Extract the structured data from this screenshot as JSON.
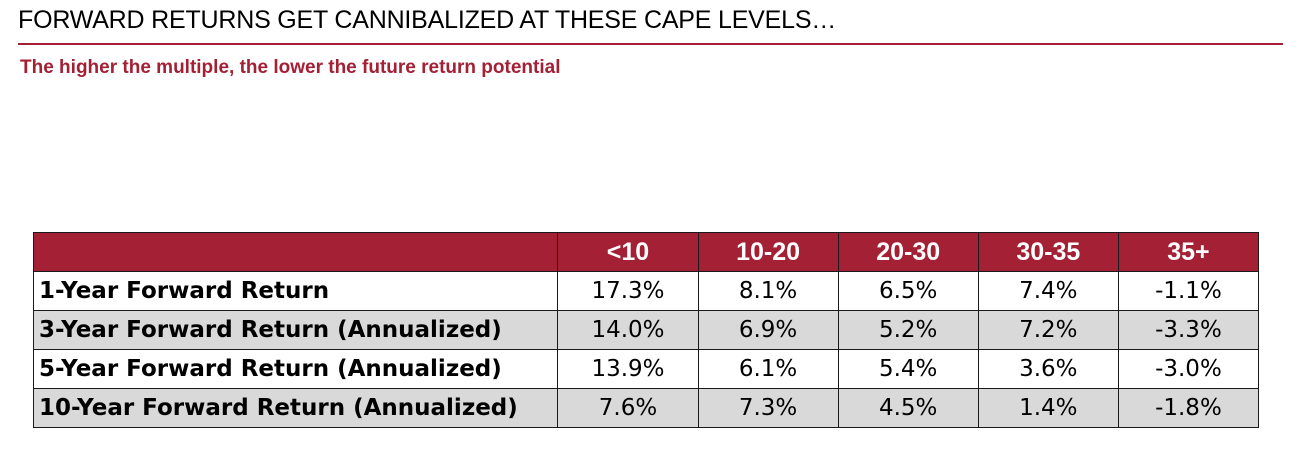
{
  "header": {
    "title": "FORWARD RETURNS GET CANNIBALIZED AT THESE CAPE LEVELS…",
    "subtitle": "The higher the multiple, the lower the future return potential"
  },
  "colors": {
    "accent": "#a32035",
    "row_shade": "#d9d9d9"
  },
  "chart_data": {
    "type": "table",
    "title": "FORWARD RETURNS GET CANNIBALIZED AT THESE CAPE LEVELS…",
    "subtitle": "The higher the multiple, the lower the future return potential",
    "columns": [
      "",
      "<10",
      "10-20",
      "20-30",
      "30-35",
      "35+"
    ],
    "rows": [
      {
        "label": "1-Year Forward Return",
        "values": [
          "17.3%",
          "8.1%",
          "6.5%",
          "7.4%",
          "-1.1%"
        ]
      },
      {
        "label": "3-Year Forward Return (Annualized)",
        "values": [
          "14.0%",
          "6.9%",
          "5.2%",
          "7.2%",
          "-3.3%"
        ]
      },
      {
        "label": "5-Year Forward Return (Annualized)",
        "values": [
          "13.9%",
          "6.1%",
          "5.4%",
          "3.6%",
          "-3.0%"
        ]
      },
      {
        "label": "10-Year Forward Return (Annualized)",
        "values": [
          "7.6%",
          "7.3%",
          "4.5%",
          "1.4%",
          "-1.8%"
        ]
      }
    ]
  }
}
